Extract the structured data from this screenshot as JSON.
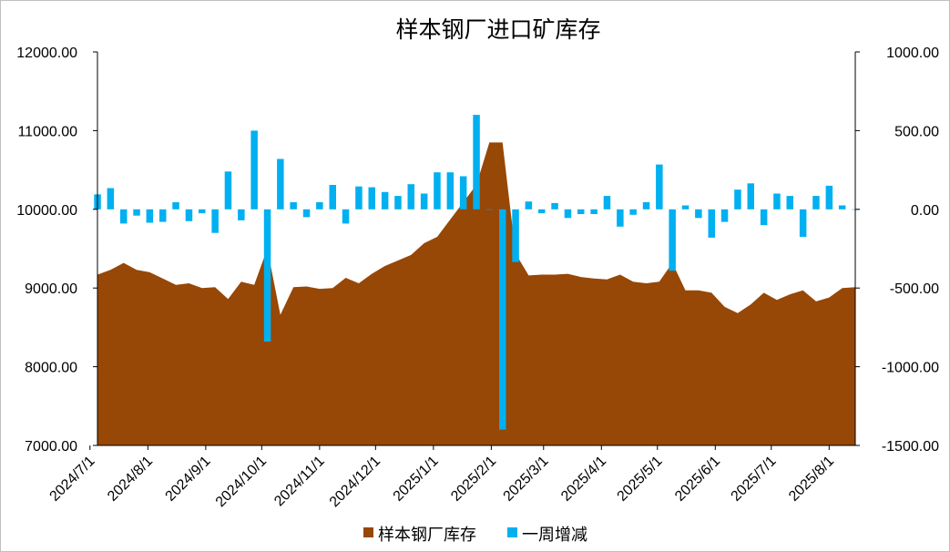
{
  "chart_data": {
    "type": "area",
    "title": "样本钢厂进口矿库存",
    "colors": {
      "area": "#974706",
      "bar": "#00b0f0",
      "axis": "#000000"
    },
    "x_start": "2024-07-05",
    "x_end": "2025-08-15",
    "x_ticks": [
      "2024/7/1",
      "2024/8/1",
      "2024/9/1",
      "2024/10/1",
      "2024/11/1",
      "2024/12/1",
      "2025/1/1",
      "2025/2/1",
      "2025/3/1",
      "2025/4/1",
      "2025/5/1",
      "2025/6/1",
      "2025/7/1",
      "2025/8/1"
    ],
    "y_left": {
      "min": 7000,
      "max": 12000,
      "step": 1000,
      "tick_labels": [
        "7000.00",
        "8000.00",
        "9000.00",
        "10000.00",
        "11000.00",
        "12000.00"
      ]
    },
    "y_right": {
      "min": -1500,
      "max": 1000,
      "step": 500,
      "tick_labels": [
        "-1500.00",
        "-1000.00",
        "-500.00",
        "0.00",
        "500.00",
        "1000.00"
      ]
    },
    "legend": [
      "样本钢厂库存",
      "一周增减"
    ],
    "series": [
      {
        "name": "样本钢厂库存",
        "axis": "left",
        "type": "area",
        "x": [
          "2024-07-05",
          "2024-07-12",
          "2024-07-19",
          "2024-07-26",
          "2024-08-02",
          "2024-08-09",
          "2024-08-16",
          "2024-08-23",
          "2024-08-30",
          "2024-09-06",
          "2024-09-13",
          "2024-09-20",
          "2024-09-27",
          "2024-10-04",
          "2024-10-11",
          "2024-10-18",
          "2024-10-25",
          "2024-11-01",
          "2024-11-08",
          "2024-11-15",
          "2024-11-22",
          "2024-11-29",
          "2024-12-06",
          "2024-12-13",
          "2024-12-20",
          "2024-12-27",
          "2025-01-03",
          "2025-01-10",
          "2025-01-17",
          "2025-01-24",
          "2025-01-31",
          "2025-02-07",
          "2025-02-14",
          "2025-02-21",
          "2025-02-28",
          "2025-03-07",
          "2025-03-14",
          "2025-03-21",
          "2025-03-28",
          "2025-04-04",
          "2025-04-11",
          "2025-04-18",
          "2025-04-25",
          "2025-05-02",
          "2025-05-09",
          "2025-05-16",
          "2025-05-23",
          "2025-05-30",
          "2025-06-06",
          "2025-06-13",
          "2025-06-20",
          "2025-06-27",
          "2025-07-04",
          "2025-07-11",
          "2025-07-18",
          "2025-07-25",
          "2025-08-01",
          "2025-08-08",
          "2025-08-15"
        ],
        "values": [
          9170,
          9230,
          9320,
          9230,
          9200,
          9120,
          9040,
          9060,
          9000,
          9010,
          8860,
          9080,
          9040,
          9500,
          8660,
          9010,
          9020,
          8990,
          9000,
          9130,
          9060,
          9180,
          9280,
          9350,
          9420,
          9570,
          9650,
          9870,
          10090,
          10310,
          10850,
          10850,
          9440,
          9160,
          9170,
          9170,
          9180,
          9140,
          9120,
          9110,
          9170,
          9080,
          9060,
          9080,
          9320,
          8970,
          8970,
          8940,
          8760,
          8680,
          8790,
          8940,
          8850,
          8920,
          8970,
          8830,
          8880,
          9000,
          9010
        ]
      },
      {
        "name": "一周增减",
        "axis": "right",
        "type": "bar",
        "x": [
          "2024-07-05",
          "2024-07-12",
          "2024-07-19",
          "2024-07-26",
          "2024-08-02",
          "2024-08-09",
          "2024-08-16",
          "2024-08-23",
          "2024-08-30",
          "2024-09-06",
          "2024-09-13",
          "2024-09-20",
          "2024-09-27",
          "2024-10-04",
          "2024-10-11",
          "2024-10-18",
          "2024-10-25",
          "2024-11-01",
          "2024-11-08",
          "2024-11-15",
          "2024-11-22",
          "2024-11-29",
          "2024-12-06",
          "2024-12-13",
          "2024-12-20",
          "2024-12-27",
          "2025-01-03",
          "2025-01-10",
          "2025-01-17",
          "2025-01-24",
          "2025-01-31",
          "2025-02-07",
          "2025-02-14",
          "2025-02-21",
          "2025-02-28",
          "2025-03-07",
          "2025-03-14",
          "2025-03-21",
          "2025-03-28",
          "2025-04-04",
          "2025-04-11",
          "2025-04-18",
          "2025-04-25",
          "2025-05-02",
          "2025-05-09",
          "2025-05-16",
          "2025-05-23",
          "2025-05-30",
          "2025-06-06",
          "2025-06-13",
          "2025-06-20",
          "2025-06-27",
          "2025-07-04",
          "2025-07-11",
          "2025-07-18",
          "2025-07-25",
          "2025-08-01",
          "2025-08-08",
          "2025-08-15"
        ],
        "values": [
          95,
          135,
          -90,
          -40,
          -85,
          -80,
          45,
          -75,
          -25,
          -150,
          240,
          -70,
          500,
          -840,
          320,
          45,
          -50,
          45,
          155,
          -90,
          145,
          140,
          110,
          85,
          160,
          100,
          235,
          235,
          210,
          600,
          0,
          -1400,
          -335,
          50,
          -25,
          40,
          -55,
          -30,
          -30,
          85,
          -110,
          -35,
          45,
          285,
          -390,
          25,
          -55,
          -180,
          -80,
          125,
          165,
          -100,
          100,
          85,
          -175,
          85,
          150,
          25,
          0
        ]
      }
    ]
  }
}
